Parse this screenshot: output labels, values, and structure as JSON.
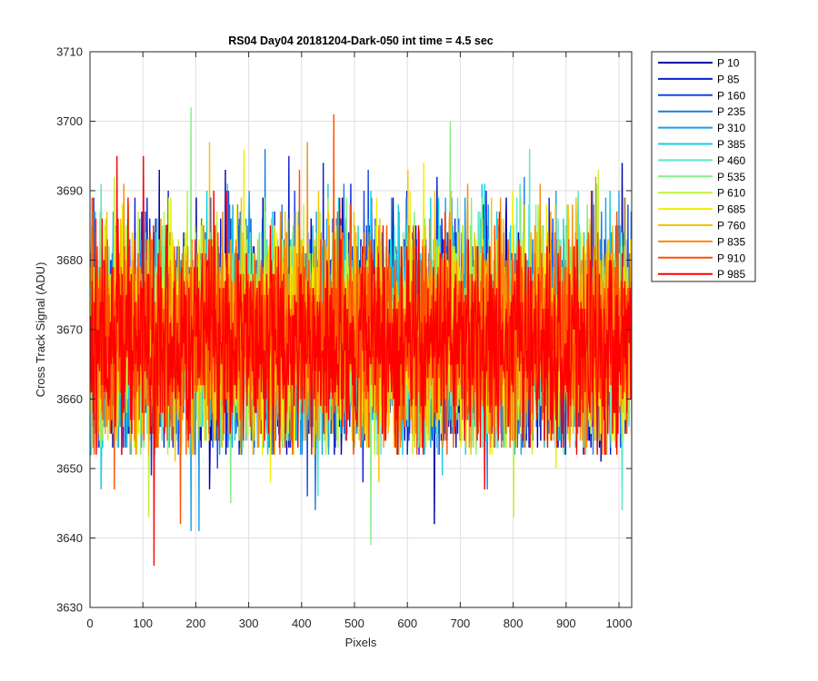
{
  "chart_data": {
    "type": "line",
    "title": "RS04 Day04 20181204-Dark-050 int time = 4.5 sec",
    "xlabel": "Pixels",
    "ylabel": "Cross Track Signal (ADU)",
    "xlim": [
      0,
      1024
    ],
    "ylim": [
      3630,
      3710
    ],
    "xticks": [
      0,
      100,
      200,
      300,
      400,
      500,
      600,
      700,
      800,
      900,
      1000
    ],
    "yticks": [
      3630,
      3640,
      3650,
      3660,
      3670,
      3680,
      3690,
      3700,
      3710
    ],
    "grid": true,
    "legend_position": "outside-top-right",
    "n_points_per_series": 1024,
    "series": [
      {
        "name": "P 10",
        "color": "#0000a8",
        "mean": 3669,
        "sd": 7.5,
        "peaks": [
          [
            130,
            3693
          ],
          [
            255,
            3693
          ],
          [
            1005,
            3694
          ]
        ],
        "troughs": [
          [
            225,
            3647
          ],
          [
            650,
            3642
          ],
          [
            965,
            3651
          ]
        ]
      },
      {
        "name": "P 85",
        "color": "#0a1ed2",
        "mean": 3669,
        "sd": 7.5,
        "peaks": [
          [
            375,
            3695
          ],
          [
            440,
            3694
          ],
          [
            655,
            3692
          ]
        ],
        "troughs": [
          [
            115,
            3649
          ],
          [
            515,
            3648
          ]
        ]
      },
      {
        "name": "P 160",
        "color": "#1446e6",
        "mean": 3669,
        "sd": 7.5,
        "peaks": [
          [
            410,
            3695
          ],
          [
            525,
            3693
          ]
        ],
        "troughs": [
          [
            240,
            3650
          ],
          [
            410,
            3646
          ]
        ]
      },
      {
        "name": "P 235",
        "color": "#1e7ae6",
        "mean": 3669,
        "sd": 7.5,
        "peaks": [
          [
            330,
            3696
          ],
          [
            820,
            3692
          ]
        ],
        "troughs": [
          [
            425,
            3644
          ],
          [
            750,
            3647
          ]
        ]
      },
      {
        "name": "P 310",
        "color": "#19a0e6",
        "mean": 3669,
        "sd": 7.5,
        "peaks": [
          [
            300,
            3690
          ],
          [
            880,
            3690
          ]
        ],
        "troughs": [
          [
            190,
            3641
          ],
          [
            205,
            3641
          ]
        ]
      },
      {
        "name": "P 385",
        "color": "#14cde6",
        "mean": 3669,
        "sd": 7.5,
        "peaks": [
          [
            220,
            3690
          ],
          [
            745,
            3691
          ]
        ],
        "troughs": [
          [
            20,
            3647
          ],
          [
            665,
            3649
          ]
        ]
      },
      {
        "name": "P 460",
        "color": "#5ae6c8",
        "mean": 3669,
        "sd": 7.5,
        "peaks": [
          [
            830,
            3696
          ],
          [
            20,
            3691
          ]
        ],
        "troughs": [
          [
            1005,
            3644
          ],
          [
            430,
            3646
          ]
        ]
      },
      {
        "name": "P 535",
        "color": "#82f082",
        "mean": 3669,
        "sd": 7.5,
        "peaks": [
          [
            190,
            3702
          ],
          [
            680,
            3700
          ]
        ],
        "troughs": [
          [
            530,
            3639
          ],
          [
            265,
            3645
          ]
        ]
      },
      {
        "name": "P 610",
        "color": "#c3f037",
        "mean": 3669,
        "sd": 7.5,
        "peaks": [
          [
            45,
            3692
          ],
          [
            960,
            3693
          ]
        ],
        "troughs": [
          [
            800,
            3643
          ],
          [
            110,
            3643
          ]
        ]
      },
      {
        "name": "P 685",
        "color": "#f0f000",
        "mean": 3669,
        "sd": 7.5,
        "peaks": [
          [
            290,
            3696
          ],
          [
            630,
            3694
          ]
        ],
        "troughs": [
          [
            340,
            3648
          ],
          [
            880,
            3650
          ]
        ]
      },
      {
        "name": "P 760",
        "color": "#f5c300",
        "mean": 3669,
        "sd": 7.5,
        "peaks": [
          [
            225,
            3697
          ],
          [
            600,
            3693
          ]
        ],
        "troughs": [
          [
            545,
            3648
          ],
          [
            160,
            3651
          ]
        ]
      },
      {
        "name": "P 835",
        "color": "#fa8c0a",
        "mean": 3669,
        "sd": 7.5,
        "peaks": [
          [
            410,
            3697
          ],
          [
            955,
            3692
          ]
        ],
        "troughs": [
          [
            120,
            3651
          ],
          [
            820,
            3653
          ]
        ]
      },
      {
        "name": "P 910",
        "color": "#ff5000",
        "mean": 3669,
        "sd": 7.5,
        "peaks": [
          [
            460,
            3701
          ],
          [
            395,
            3693
          ]
        ],
        "troughs": [
          [
            170,
            3642
          ],
          [
            45,
            3647
          ]
        ]
      },
      {
        "name": "P 985",
        "color": "#ff0000",
        "mean": 3668,
        "sd": 7.0,
        "peaks": [
          [
            100,
            3695
          ],
          [
            50,
            3695
          ]
        ],
        "troughs": [
          [
            120,
            3636
          ],
          [
            745,
            3647
          ]
        ]
      }
    ]
  }
}
